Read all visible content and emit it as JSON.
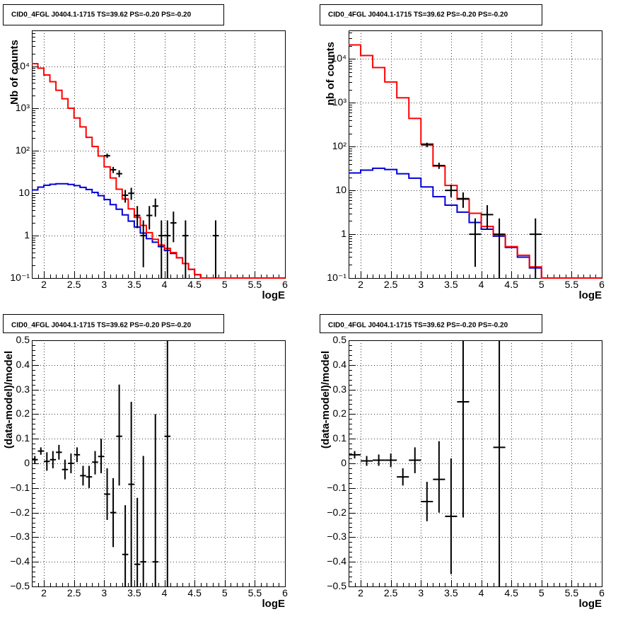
{
  "colors": {
    "data": "#000000",
    "total_model": "#ff0000",
    "source_model": "#0000d8",
    "grid": "#000000"
  },
  "chart_data": [
    {
      "type": "histogram",
      "title": "CID0_4FGL J0404.1-1715 TS=39.62 PS=-0.20 PS=-0.20",
      "xlabel": "logE",
      "ylabel": "Nb of counts",
      "log_y": true,
      "grid": true,
      "xlim": [
        1.8,
        6.0
      ],
      "ylim": [
        0.1,
        70000
      ],
      "x_ticks": [
        "2",
        "2.5",
        "3",
        "3.5",
        "4",
        "4.5",
        "5",
        "5.5",
        "6"
      ],
      "y_ticks": [
        "10⁻¹",
        "1",
        "10",
        "10²",
        "10³",
        "10⁴"
      ],
      "bin_edges": [
        1.8,
        1.9,
        2.0,
        2.1,
        2.2,
        2.3,
        2.4,
        2.5,
        2.6,
        2.7,
        2.8,
        2.9,
        3.0,
        3.1,
        3.2,
        3.3,
        3.4,
        3.5,
        3.6,
        3.7,
        3.8,
        3.9,
        4.0,
        4.1,
        4.2,
        4.3,
        4.4,
        4.5,
        4.6,
        4.7,
        4.8,
        4.9,
        5.0,
        5.1,
        5.2,
        5.3,
        5.4,
        5.5,
        5.6,
        5.7,
        5.8,
        5.9,
        6.0
      ],
      "series": [
        {
          "values": [
            11500,
            9000,
            6200,
            4300,
            2700,
            1700,
            1020,
            600,
            370,
            210,
            127,
            76,
            42,
            23,
            12.5,
            7.3,
            4.3,
            2.7,
            1.75,
            1.18,
            0.82,
            0.6,
            0.5,
            0.4,
            0.3,
            0.22,
            0.16,
            0.12,
            0.1,
            0.1,
            0.1,
            0.1,
            0.1,
            0.1,
            0.1,
            0.1,
            0.1,
            0.1,
            0.1,
            0.1,
            0.1,
            0.1
          ]
        },
        {
          "values": [
            12,
            14,
            15.5,
            16.3,
            16.8,
            16.8,
            16.2,
            15.2,
            13.8,
            12.3,
            10.5,
            8.8,
            7.1,
            5.4,
            4.2,
            3.1,
            2.2,
            1.6,
            1.15,
            0.85,
            0.7,
            0.55,
            0.45,
            0.38,
            0.3,
            0.22,
            0.16,
            0.12,
            0.1,
            0.1,
            0.1,
            0.1,
            0.1,
            0.1,
            0.1,
            0.1,
            0.1,
            0.1,
            0.1,
            0.1,
            0.1,
            0.1
          ]
        }
      ],
      "points": [
        {
          "x": 3.05,
          "y": 77,
          "yl": 68,
          "yh": 86
        },
        {
          "x": 3.15,
          "y": 36,
          "yl": 30,
          "yh": 42
        },
        {
          "x": 3.25,
          "y": 29,
          "yl": 24,
          "yh": 35
        },
        {
          "x": 3.35,
          "y": 9,
          "yl": 6,
          "yh": 12
        },
        {
          "x": 3.45,
          "y": 10,
          "yl": 7,
          "yh": 13.5
        },
        {
          "x": 3.55,
          "y": 3,
          "yl": 1.5,
          "yh": 5
        },
        {
          "x": 3.65,
          "y": 1,
          "yl": 0.18,
          "yh": 2.3
        },
        {
          "x": 3.75,
          "y": 3,
          "yl": 1.4,
          "yh": 5
        },
        {
          "x": 3.85,
          "y": 5,
          "yl": 2.8,
          "yh": 7.5
        },
        {
          "x": 3.95,
          "y": 1,
          "yl": 0.1,
          "yh": 2.3
        },
        {
          "x": 4.05,
          "y": 1,
          "yl": 0.1,
          "yh": 2.3
        },
        {
          "x": 4.15,
          "y": 2,
          "yl": 0.7,
          "yh": 3.7
        },
        {
          "x": 4.35,
          "y": 1,
          "yl": 0.1,
          "yh": 2.3
        },
        {
          "x": 4.85,
          "y": 1,
          "yl": 0.1,
          "yh": 2.3
        }
      ]
    },
    {
      "type": "histogram",
      "title": "CID0_4FGL J0404.1-1715 TS=39.62 PS=-0.20 PS=-0.20",
      "xlabel": "logE",
      "ylabel": "nb of counts",
      "log_y": true,
      "grid": true,
      "xlim": [
        1.8,
        6.0
      ],
      "ylim": [
        0.1,
        45000
      ],
      "x_ticks": [
        "2",
        "2.5",
        "3",
        "3.5",
        "4",
        "4.5",
        "5",
        "5.5",
        "6"
      ],
      "y_ticks": [
        "10⁻¹",
        "1",
        "10",
        "10²",
        "10³",
        "10⁴"
      ],
      "bin_edges": [
        1.8,
        2.0,
        2.2,
        2.4,
        2.6,
        2.8,
        3.0,
        3.2,
        3.4,
        3.6,
        3.8,
        4.0,
        4.2,
        4.4,
        4.6,
        4.8,
        5.0,
        5.2,
        5.4,
        5.6,
        5.8,
        6.0
      ],
      "series": [
        {
          "values": [
            21000,
            12000,
            6400,
            3000,
            1300,
            440,
            115,
            36,
            13,
            6.3,
            3.0,
            1.5,
            0.95,
            0.52,
            0.33,
            0.18,
            0.1,
            0.1,
            0.1,
            0.1,
            0.1
          ]
        },
        {
          "values": [
            25,
            29,
            32,
            30,
            24,
            19,
            12,
            7.2,
            4.6,
            3.2,
            1.85,
            1.3,
            0.9,
            0.5,
            0.3,
            0.17,
            0.1,
            0.1,
            0.1,
            0.1,
            0.1
          ]
        }
      ],
      "points": [
        {
          "x": 3.1,
          "y": 110,
          "yl": 97,
          "yh": 123
        },
        {
          "x": 3.3,
          "y": 37,
          "yl": 31,
          "yh": 43
        },
        {
          "x": 3.5,
          "y": 10,
          "yl": 7,
          "yh": 13.5
        },
        {
          "x": 3.7,
          "y": 6.5,
          "yl": 4,
          "yh": 9
        },
        {
          "x": 3.9,
          "y": 1,
          "yl": 0.18,
          "yh": 2.3
        },
        {
          "x": 4.1,
          "y": 2.8,
          "yl": 1.3,
          "yh": 4.6
        },
        {
          "x": 4.3,
          "y": 1,
          "yl": 0.1,
          "yh": 2.3
        },
        {
          "x": 4.9,
          "y": 1,
          "yl": 0.1,
          "yh": 2.3
        }
      ]
    },
    {
      "type": "scatter",
      "title": "CID0_4FGL J0404.1-1715 TS=39.62 PS=-0.20 PS=-0.20",
      "xlabel": "logE",
      "ylabel": "(data-model)/model",
      "grid": true,
      "xlim": [
        1.8,
        6.0
      ],
      "ylim": [
        -0.5,
        0.5
      ],
      "x_ticks": [
        "2",
        "2.5",
        "3",
        "3.5",
        "4",
        "4.5",
        "5",
        "5.5",
        "6"
      ],
      "y_ticks": [
        "−0.5",
        "−0.4",
        "−0.3",
        "−0.2",
        "−0.1",
        "0",
        "0.1",
        "0.2",
        "0.3",
        "0.4",
        "0.5"
      ],
      "points": [
        {
          "x": 1.85,
          "y": 0.015,
          "yl": 0.0,
          "yh": 0.03
        },
        {
          "x": 1.95,
          "y": 0.05,
          "yl": 0.035,
          "yh": 0.065
        },
        {
          "x": 2.05,
          "y": 0.008,
          "yl": -0.03,
          "yh": 0.045
        },
        {
          "x": 2.15,
          "y": 0.015,
          "yl": -0.02,
          "yh": 0.05
        },
        {
          "x": 2.25,
          "y": 0.045,
          "yl": 0.015,
          "yh": 0.075
        },
        {
          "x": 2.35,
          "y": -0.025,
          "yl": -0.065,
          "yh": 0.015
        },
        {
          "x": 2.45,
          "y": 0.0,
          "yl": -0.04,
          "yh": 0.04
        },
        {
          "x": 2.55,
          "y": 0.035,
          "yl": 0.005,
          "yh": 0.065
        },
        {
          "x": 2.65,
          "y": -0.05,
          "yl": -0.09,
          "yh": -0.01
        },
        {
          "x": 2.75,
          "y": -0.055,
          "yl": -0.1,
          "yh": -0.01
        },
        {
          "x": 2.85,
          "y": 0.005,
          "yl": -0.045,
          "yh": 0.05
        },
        {
          "x": 2.95,
          "y": 0.028,
          "yl": -0.04,
          "yh": 0.1
        },
        {
          "x": 3.05,
          "y": -0.125,
          "yl": -0.23,
          "yh": -0.02
        },
        {
          "x": 3.15,
          "y": -0.2,
          "yl": -0.34,
          "yh": -0.06
        },
        {
          "x": 3.25,
          "y": 0.11,
          "yl": -0.09,
          "yh": 0.32
        },
        {
          "x": 3.35,
          "y": -0.37,
          "yl": -0.5,
          "yh": -0.17
        },
        {
          "x": 3.45,
          "y": -0.085,
          "yl": -0.5,
          "yh": 0.25
        },
        {
          "x": 3.55,
          "y": -0.41,
          "yl": -0.5,
          "yh": -0.14
        },
        {
          "x": 3.65,
          "y": -0.4,
          "yl": -0.5,
          "yh": 0.03
        },
        {
          "x": 3.85,
          "y": -0.4,
          "yl": -0.5,
          "yh": 0.2
        },
        {
          "x": 4.05,
          "y": 0.11,
          "yl": -0.5,
          "yh": 0.5
        }
      ]
    },
    {
      "type": "scatter",
      "title": "CID0_4FGL J0404.1-1715 TS=39.62 PS=-0.20 PS=-0.20",
      "xlabel": "logE",
      "ylabel": "(data-model)/model",
      "grid": true,
      "xlim": [
        1.8,
        6.0
      ],
      "ylim": [
        -0.5,
        0.5
      ],
      "x_ticks": [
        "2",
        "2.5",
        "3",
        "3.5",
        "4",
        "4.5",
        "5",
        "5.5",
        "6"
      ],
      "y_ticks": [
        "−0.5",
        "−0.4",
        "−0.3",
        "−0.2",
        "−0.1",
        "0",
        "0.1",
        "0.2",
        "0.3",
        "0.4",
        "0.5"
      ],
      "points": [
        {
          "x": 1.9,
          "y": 0.035,
          "yl": 0.02,
          "yh": 0.05
        },
        {
          "x": 2.1,
          "y": 0.01,
          "yl": -0.01,
          "yh": 0.03
        },
        {
          "x": 2.3,
          "y": 0.013,
          "yl": -0.01,
          "yh": 0.036
        },
        {
          "x": 2.5,
          "y": 0.013,
          "yl": -0.015,
          "yh": 0.04
        },
        {
          "x": 2.7,
          "y": -0.055,
          "yl": -0.09,
          "yh": -0.02
        },
        {
          "x": 2.9,
          "y": 0.013,
          "yl": -0.04,
          "yh": 0.065
        },
        {
          "x": 3.1,
          "y": -0.155,
          "yl": -0.235,
          "yh": -0.075
        },
        {
          "x": 3.3,
          "y": -0.065,
          "yl": -0.2,
          "yh": 0.09
        },
        {
          "x": 3.5,
          "y": -0.215,
          "yl": -0.45,
          "yh": 0.02
        },
        {
          "x": 3.7,
          "y": 0.25,
          "yl": -0.22,
          "yh": 0.5
        },
        {
          "x": 4.3,
          "y": 0.065,
          "yl": -0.5,
          "yh": 0.5
        }
      ]
    }
  ]
}
